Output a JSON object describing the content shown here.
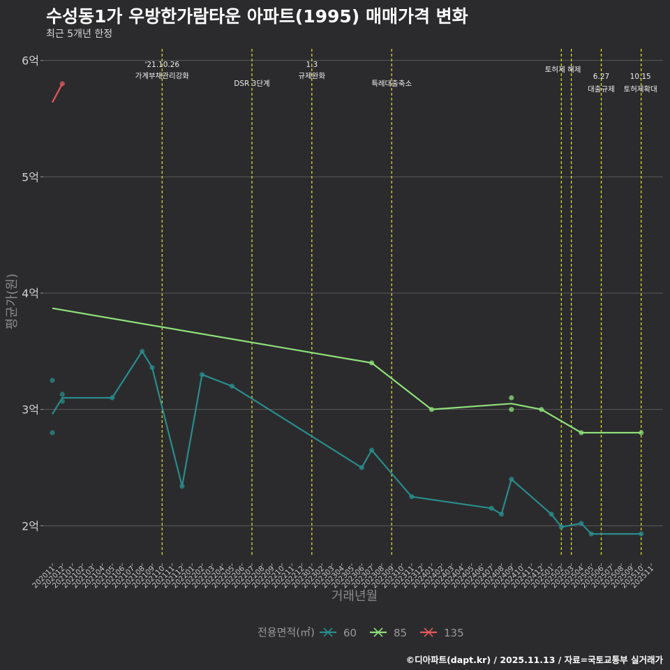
{
  "title": "수성동1가 우방한가람타운 아파트(1995) 매매가격 변화",
  "subtitle": "최근 5개년 한정",
  "caption": "©디아파트(dapt.kr) / 2025.11.13 / 자료=국토교통부 실거래가",
  "colors": {
    "background": "#2b2b2d",
    "grid": "#5a5a5a",
    "event_line": "#e6e635",
    "s60": "#2a8c8c",
    "s85": "#8fe07a",
    "s135": "#e8585c"
  },
  "chart_data": {
    "type": "line",
    "xlabel": "거래년월",
    "ylabel": "평균가(원)",
    "ylim": [
      1.75,
      6.1
    ],
    "yticks": [
      2,
      3,
      4,
      5,
      6
    ],
    "ytick_labels": [
      "2억",
      "3억",
      "4억",
      "5억",
      "6억"
    ],
    "x_categories": [
      "202011",
      "202012",
      "202101",
      "202102",
      "202103",
      "202104",
      "202105",
      "202106",
      "202107",
      "202108",
      "202109",
      "202110",
      "202111",
      "202112",
      "202201",
      "202202",
      "202203",
      "202204",
      "202205",
      "202206",
      "202207",
      "202208",
      "202209",
      "202210",
      "202211",
      "202212",
      "202301",
      "202302",
      "202303",
      "202304",
      "202305",
      "202306",
      "202307",
      "202308",
      "202309",
      "202310",
      "202311",
      "202312",
      "202401",
      "202402",
      "202403",
      "202404",
      "202405",
      "202406",
      "202407",
      "202408",
      "202409",
      "202410",
      "202411",
      "202412",
      "202501",
      "202502",
      "202503",
      "202504",
      "202505",
      "202506",
      "202507",
      "202508",
      "202509",
      "202510",
      "202511"
    ],
    "legend_title": "전용면적(㎡)",
    "legend_position": "bottom",
    "series": [
      {
        "name": "60",
        "color": "#2a8c8c",
        "line": [
          [
            0,
            2.96
          ],
          [
            1,
            3.1
          ],
          [
            6,
            3.1
          ],
          [
            9,
            3.5
          ],
          [
            10,
            3.36
          ],
          [
            13,
            2.34
          ],
          [
            15,
            3.3
          ],
          [
            18,
            3.2
          ],
          [
            31,
            2.5
          ],
          [
            32,
            2.65
          ],
          [
            36,
            2.25
          ],
          [
            44,
            2.15
          ],
          [
            45,
            2.1
          ],
          [
            46,
            2.4
          ],
          [
            50,
            2.1
          ],
          [
            51,
            1.99
          ],
          [
            53,
            2.02
          ],
          [
            54,
            1.93
          ],
          [
            59,
            1.93
          ]
        ],
        "points": [
          [
            0,
            3.25
          ],
          [
            0,
            2.8
          ],
          [
            1,
            3.13
          ],
          [
            1,
            3.07
          ],
          [
            6,
            3.1
          ],
          [
            9,
            3.5
          ],
          [
            10,
            3.36
          ],
          [
            13,
            2.34
          ],
          [
            15,
            3.3
          ],
          [
            18,
            3.2
          ],
          [
            31,
            2.5
          ],
          [
            32,
            2.65
          ],
          [
            36,
            2.25
          ],
          [
            44,
            2.15
          ],
          [
            45,
            2.1
          ],
          [
            46,
            2.4
          ],
          [
            50,
            2.1
          ],
          [
            51,
            1.99
          ],
          [
            53,
            2.02
          ],
          [
            54,
            1.93
          ],
          [
            59,
            1.93
          ]
        ]
      },
      {
        "name": "85",
        "color": "#8fe07a",
        "line": [
          [
            0,
            3.87
          ],
          [
            32,
            3.4
          ],
          [
            38,
            3.0
          ],
          [
            46,
            3.05
          ],
          [
            49,
            3.0
          ],
          [
            53,
            2.8
          ],
          [
            59,
            2.8
          ]
        ],
        "points": [
          [
            32,
            3.4
          ],
          [
            38,
            3.0
          ],
          [
            46,
            3.1
          ],
          [
            46,
            3.0
          ],
          [
            49,
            3.0
          ],
          [
            53,
            2.8
          ],
          [
            59,
            2.8
          ]
        ]
      },
      {
        "name": "135",
        "color": "#e8585c",
        "line": [
          [
            0,
            5.64
          ],
          [
            1,
            5.8
          ]
        ],
        "points": [
          [
            1,
            5.8
          ]
        ]
      }
    ],
    "events": [
      {
        "x": 11,
        "line1": "'21.10.26",
        "line2": "가계부채관리강화"
      },
      {
        "x": 20,
        "line1": "",
        "line2": "DSR 3단계"
      },
      {
        "x": 26,
        "line1": "1.3",
        "line2": "규제완화"
      },
      {
        "x": 34,
        "line1": "",
        "line2": "특례대출축소"
      },
      {
        "x": 51,
        "line1": "",
        "line2": ""
      },
      {
        "x": 52,
        "line1": "토허제 해제",
        "line2": ""
      },
      {
        "x": 55,
        "line1": "6.27",
        "line2": "대출규제"
      },
      {
        "x": 59,
        "line1": "10.15",
        "line2": "토허제확대"
      }
    ]
  }
}
